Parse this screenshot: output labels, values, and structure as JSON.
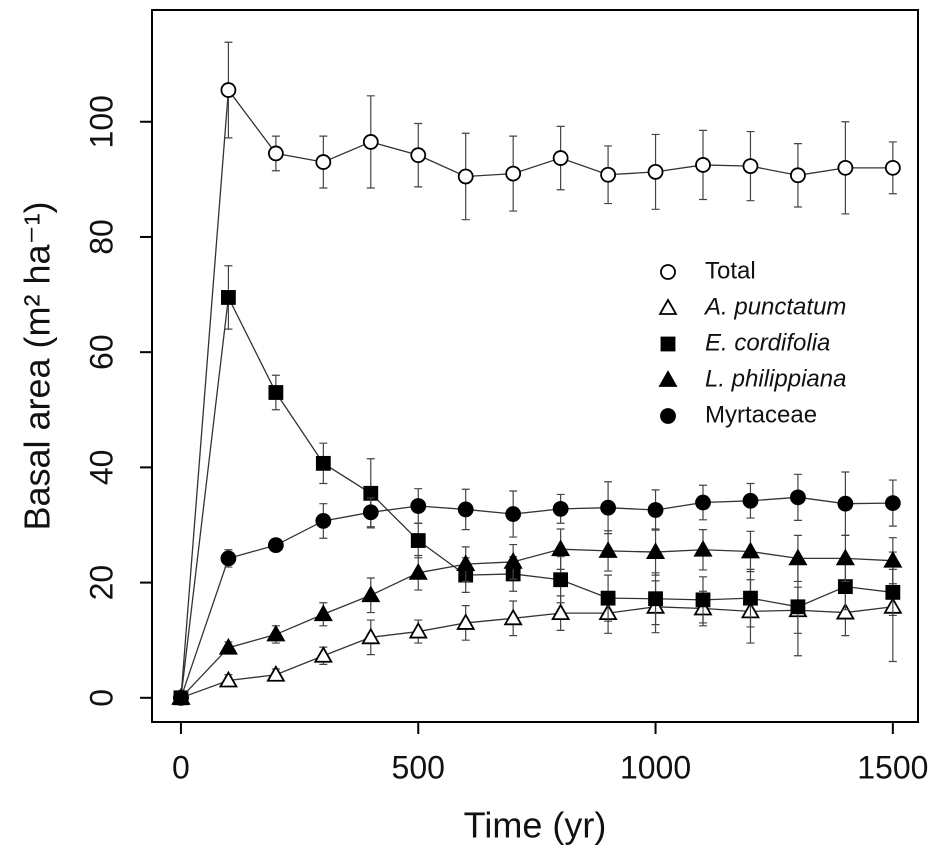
{
  "chart_data": {
    "type": "line",
    "xlabel": "Time (yr)",
    "ylabel": "Basal area (m² ha⁻¹)",
    "x": [
      0,
      100,
      200,
      300,
      400,
      500,
      600,
      700,
      800,
      900,
      1000,
      1100,
      1200,
      1300,
      1400,
      1500
    ],
    "xlim": [
      -61,
      1553
    ],
    "ylim": [
      -4.2,
      119.4
    ],
    "xticks": [
      0,
      500,
      1000,
      1500
    ],
    "yticks": [
      0,
      20,
      40,
      60,
      80,
      100
    ],
    "series": [
      {
        "name": "Total",
        "color": "#000000",
        "marker": "open-circle",
        "italic": false,
        "values": [
          0,
          105.5,
          94.5,
          93,
          96.5,
          94.2,
          90.5,
          91,
          93.7,
          90.8,
          91.3,
          92.5,
          92.3,
          90.7,
          92,
          92
        ],
        "errors": [
          0,
          8.3,
          3,
          4.5,
          8,
          5.5,
          7.5,
          6.5,
          5.5,
          5,
          6.5,
          6,
          6,
          5.5,
          8,
          4.5
        ]
      },
      {
        "name": "A. punctatum",
        "color": "#000000",
        "marker": "open-triangle",
        "italic": true,
        "values": [
          0,
          3,
          4,
          7.3,
          10.5,
          11.5,
          13,
          13.8,
          14.7,
          14.7,
          15.8,
          15.5,
          15,
          15.2,
          14.8,
          15.8
        ],
        "errors": [
          0,
          1,
          1,
          1.5,
          3,
          2,
          3,
          3,
          3,
          3.5,
          4.5,
          3,
          5.5,
          4,
          4,
          9.5
        ]
      },
      {
        "name": "E. cordifolia",
        "color": "#000000",
        "marker": "square",
        "italic": true,
        "values": [
          0,
          69.5,
          53,
          40.7,
          35.5,
          27.3,
          21.3,
          21.5,
          20.5,
          17.3,
          17.2,
          17,
          17.3,
          15.8,
          19.3,
          18.3
        ],
        "errors": [
          0,
          5.5,
          3,
          3.5,
          6,
          3,
          3,
          3,
          4,
          4,
          4.5,
          4,
          5,
          8.5,
          4,
          4
        ]
      },
      {
        "name": "L. philippiana",
        "color": "#000000",
        "marker": "triangle",
        "italic": true,
        "values": [
          0,
          8.7,
          11,
          14.5,
          17.8,
          21.7,
          23.2,
          23.6,
          25.8,
          25.5,
          25.3,
          25.7,
          25.4,
          24.2,
          24.2,
          23.8
        ],
        "errors": [
          0,
          1,
          1.5,
          2,
          3,
          3,
          3,
          3,
          3.5,
          3.5,
          4,
          3.5,
          3.5,
          4,
          4,
          4
        ]
      },
      {
        "name": "Myrtaceae",
        "color": "#000000",
        "marker": "circle",
        "italic": false,
        "values": [
          0,
          24.2,
          26.5,
          30.7,
          32.2,
          33.3,
          32.7,
          31.9,
          32.8,
          33,
          32.6,
          33.9,
          34.2,
          34.8,
          33.7,
          33.8
        ],
        "errors": [
          0,
          1.5,
          1,
          3,
          2.5,
          3,
          3.5,
          4,
          2.5,
          4.5,
          3.5,
          3,
          3,
          4,
          5.5,
          4
        ]
      }
    ],
    "legend": "right"
  }
}
